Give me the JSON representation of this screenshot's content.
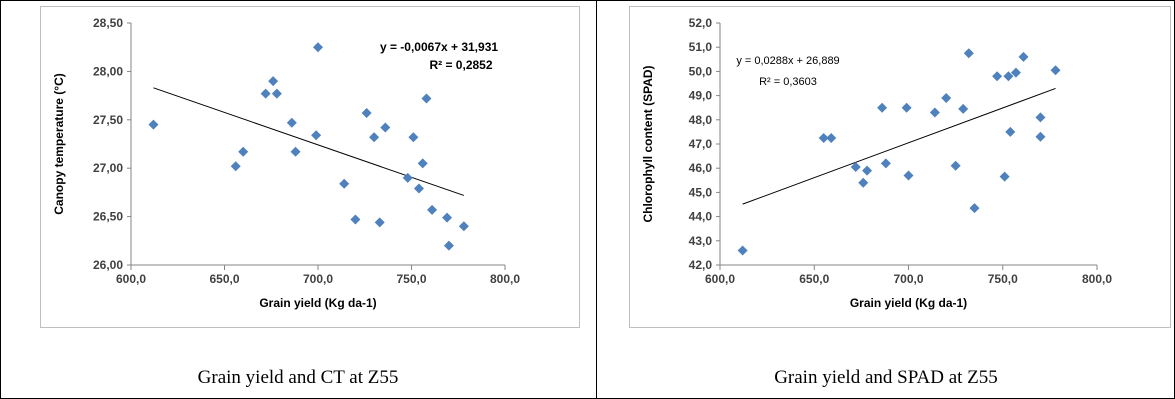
{
  "colors": {
    "marker": "#4f81bd",
    "trend": "#000000",
    "axis": "#868686",
    "grid": "#d9d9d9"
  },
  "chart_data": [
    {
      "type": "scatter",
      "title": "",
      "xlabel": "Grain yield (Kg da-1)",
      "ylabel": "Canopy temperature (°C)",
      "xlim": [
        600,
        800
      ],
      "ylim": [
        26,
        28.5
      ],
      "x_ticks": [
        "600,0",
        "650,0",
        "700,0",
        "750,0",
        "800,0"
      ],
      "y_ticks": [
        "26,00",
        "26,50",
        "27,00",
        "27,50",
        "28,00",
        "28,50"
      ],
      "equation": "y = -0,0067x + 31,931",
      "r2_label": "R² = 0,2852",
      "trendline": {
        "slope": -0.0067,
        "intercept": 31.931
      },
      "points": [
        [
          612,
          27.45
        ],
        [
          656,
          27.02
        ],
        [
          660,
          27.17
        ],
        [
          672,
          27.77
        ],
        [
          676,
          27.9
        ],
        [
          678,
          27.77
        ],
        [
          686,
          27.47
        ],
        [
          688,
          27.17
        ],
        [
          699,
          27.34
        ],
        [
          700,
          28.25
        ],
        [
          714,
          26.84
        ],
        [
          720,
          26.47
        ],
        [
          726,
          27.57
        ],
        [
          730,
          27.32
        ],
        [
          733,
          26.44
        ],
        [
          736,
          27.42
        ],
        [
          748,
          26.9
        ],
        [
          751,
          27.32
        ],
        [
          754,
          26.79
        ],
        [
          756,
          27.05
        ],
        [
          758,
          27.72
        ],
        [
          761,
          26.57
        ],
        [
          769,
          26.49
        ],
        [
          770,
          26.2
        ],
        [
          778,
          26.4
        ]
      ],
      "caption": "Grain yield and CT at Z55"
    },
    {
      "type": "scatter",
      "title": "",
      "xlabel": "Grain yield (Kg da-1)",
      "ylabel": "Chlorophyll content (SPAD)",
      "xlim": [
        600,
        800
      ],
      "ylim": [
        42,
        52
      ],
      "x_ticks": [
        "600,0",
        "650,0",
        "700,0",
        "750,0",
        "800,0"
      ],
      "y_ticks": [
        "42,0",
        "43,0",
        "44,0",
        "45,0",
        "46,0",
        "47,0",
        "48,0",
        "49,0",
        "50,0",
        "51,0",
        "52,0"
      ],
      "equation": "y = 0,0288x + 26,889",
      "r2_label": "R² = 0,3603",
      "trendline": {
        "slope": 0.0288,
        "intercept": 26.889
      },
      "points": [
        [
          612,
          42.6
        ],
        [
          655,
          47.25
        ],
        [
          659,
          47.25
        ],
        [
          672,
          46.05
        ],
        [
          676,
          45.4
        ],
        [
          678,
          45.9
        ],
        [
          686,
          48.5
        ],
        [
          688,
          46.2
        ],
        [
          699,
          48.5
        ],
        [
          700,
          45.7
        ],
        [
          714,
          48.3
        ],
        [
          720,
          48.9
        ],
        [
          725,
          46.1
        ],
        [
          729,
          48.45
        ],
        [
          732,
          50.75
        ],
        [
          735,
          44.35
        ],
        [
          747,
          49.8
        ],
        [
          751,
          45.65
        ],
        [
          753,
          49.8
        ],
        [
          754,
          47.5
        ],
        [
          757,
          49.95
        ],
        [
          761,
          50.6
        ],
        [
          770,
          48.1
        ],
        [
          770,
          47.3
        ],
        [
          778,
          50.05
        ]
      ],
      "caption": "Grain yield and SPAD at Z55"
    }
  ]
}
